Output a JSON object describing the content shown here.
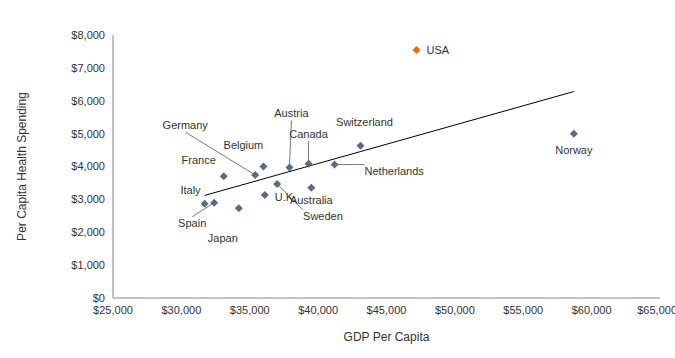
{
  "chart_data": {
    "type": "scatter",
    "x_label": "GDP Per Capita",
    "y_label": "Per Capita Health Spending",
    "points": [
      {
        "name": "Italy",
        "x": 31700,
        "y": 2870
      },
      {
        "name": "Spain",
        "x": 32400,
        "y": 2900
      },
      {
        "name": "France",
        "x": 33100,
        "y": 3700
      },
      {
        "name": "Japan",
        "x": 34200,
        "y": 2730
      },
      {
        "name": "Germany",
        "x": 35400,
        "y": 3740
      },
      {
        "name": "Belgium",
        "x": 36000,
        "y": 4000
      },
      {
        "name": "U.K.",
        "x": 36100,
        "y": 3130
      },
      {
        "name": "Sweden",
        "x": 37000,
        "y": 3470
      },
      {
        "name": "Austria",
        "x": 37900,
        "y": 3970
      },
      {
        "name": "Canada",
        "x": 39300,
        "y": 4080
      },
      {
        "name": "Australia",
        "x": 39500,
        "y": 3350
      },
      {
        "name": "Netherlands",
        "x": 41200,
        "y": 4060
      },
      {
        "name": "Switzerland",
        "x": 43100,
        "y": 4630
      },
      {
        "name": "USA",
        "x": 47200,
        "y": 7540
      },
      {
        "name": "Norway",
        "x": 58700,
        "y": 5000
      }
    ],
    "colors": [
      "#5b6b85",
      "#5b6b85",
      "#5b6b85",
      "#5b6b85",
      "#5b6b85",
      "#5b6b85",
      "#5b6b85",
      "#5b6b85",
      "#5b6b85",
      "#5b6b85",
      "#5b6b85",
      "#5b6b85",
      "#5b6b85",
      "#e46c0a",
      "#5b6b85"
    ],
    "marker": "diamond",
    "trend_line": {
      "x": [
        31700,
        58700
      ],
      "y": [
        3120,
        6280
      ],
      "color": "#000000"
    },
    "xlim": [
      25000,
      65000
    ],
    "xticks": [
      {
        "value": 25000,
        "label": "$25,000"
      },
      {
        "value": 30000,
        "label": "$30,000"
      },
      {
        "value": 35000,
        "label": "$35,000"
      },
      {
        "value": 40000,
        "label": "$40,000"
      },
      {
        "value": 45000,
        "label": "$45,000"
      },
      {
        "value": 50000,
        "label": "$50,000"
      },
      {
        "value": 55000,
        "label": "$55,000"
      },
      {
        "value": 60000,
        "label": "$60,000"
      },
      {
        "value": 65000,
        "label": "$65,000"
      }
    ],
    "ylim": [
      0,
      8000
    ],
    "yticks": [
      {
        "value": 0,
        "label": "$0"
      },
      {
        "value": 1000,
        "label": "$1,000"
      },
      {
        "value": 2000,
        "label": "$2,000"
      },
      {
        "value": 3000,
        "label": "$3,000"
      },
      {
        "value": 4000,
        "label": "$4,000"
      },
      {
        "value": 5000,
        "label": "$5,000"
      },
      {
        "value": 6000,
        "label": "$6,000"
      },
      {
        "value": 7000,
        "label": "$7,000"
      },
      {
        "value": 8000,
        "label": "$8,000"
      }
    ],
    "grid": false
  }
}
